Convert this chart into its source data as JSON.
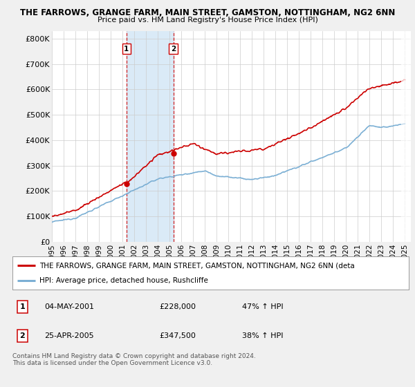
{
  "title": "THE FARROWS, GRANGE FARM, MAIN STREET, GAMSTON, NOTTINGHAM, NG2 6NN",
  "subtitle": "Price paid vs. HM Land Registry's House Price Index (HPI)",
  "ylabel_ticks": [
    "£0",
    "£100K",
    "£200K",
    "£300K",
    "£400K",
    "£500K",
    "£600K",
    "£700K",
    "£800K"
  ],
  "ytick_values": [
    0,
    100000,
    200000,
    300000,
    400000,
    500000,
    600000,
    700000,
    800000
  ],
  "ylim": [
    0,
    830000
  ],
  "xlim_start": 1995.0,
  "xlim_end": 2025.5,
  "hpi_color": "#7bafd4",
  "property_color": "#cc0000",
  "sale1_x": 2001.34,
  "sale1_y": 228000,
  "sale2_x": 2005.32,
  "sale2_y": 347500,
  "vline1_x": 2001.34,
  "vline2_x": 2005.32,
  "vline_color": "#cc0000",
  "shade_color": "#daeaf7",
  "background_color": "#f0f0f0",
  "plot_bg_color": "#ffffff",
  "legend_line1": "THE FARROWS, GRANGE FARM, MAIN STREET, GAMSTON, NOTTINGHAM, NG2 6NN (deta",
  "legend_line2": "HPI: Average price, detached house, Rushcliffe",
  "table_rows": [
    {
      "num": "1",
      "date": "04-MAY-2001",
      "price": "£228,000",
      "change": "47% ↑ HPI"
    },
    {
      "num": "2",
      "date": "25-APR-2005",
      "price": "£347,500",
      "change": "38% ↑ HPI"
    }
  ],
  "footer": "Contains HM Land Registry data © Crown copyright and database right 2024.\nThis data is licensed under the Open Government Licence v3.0.",
  "xtick_years": [
    1995,
    1996,
    1997,
    1998,
    1999,
    2000,
    2001,
    2002,
    2003,
    2004,
    2005,
    2006,
    2007,
    2008,
    2009,
    2010,
    2011,
    2012,
    2013,
    2014,
    2015,
    2016,
    2017,
    2018,
    2019,
    2020,
    2021,
    2022,
    2023,
    2024,
    2025
  ]
}
